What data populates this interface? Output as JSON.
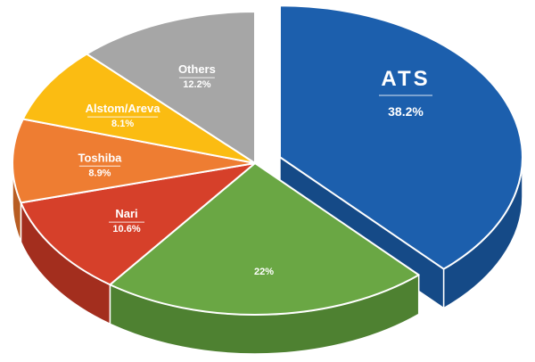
{
  "chart_data": {
    "type": "pie",
    "title": "",
    "slices": [
      {
        "label": "ATS",
        "value": 38.2,
        "value_label": "38.2%",
        "color": "#1c5fad",
        "side_color": "#154a87",
        "exploded": true
      },
      {
        "label": "",
        "value": 22.0,
        "value_label": "22%",
        "color": "#6aa744",
        "side_color": "#4e8131",
        "exploded": false
      },
      {
        "label": "Nari",
        "value": 10.6,
        "value_label": "10.6%",
        "color": "#d6402a",
        "side_color": "#a32e1e",
        "exploded": false
      },
      {
        "label": "Toshiba",
        "value": 8.9,
        "value_label": "8.9%",
        "color": "#ee7d32",
        "side_color": "#b85d23",
        "exploded": false
      },
      {
        "label": "Alstom/Areva",
        "value": 8.1,
        "value_label": "8.1%",
        "color": "#fbbc12",
        "side_color": "#c28f0b",
        "exploded": false
      },
      {
        "label": "Others",
        "value": 12.2,
        "value_label": "12.2%",
        "color": "#a6a6a6",
        "side_color": "#7c7c7c",
        "exploded": false
      }
    ],
    "legend": "none",
    "style": "3d-exploded-pie"
  }
}
